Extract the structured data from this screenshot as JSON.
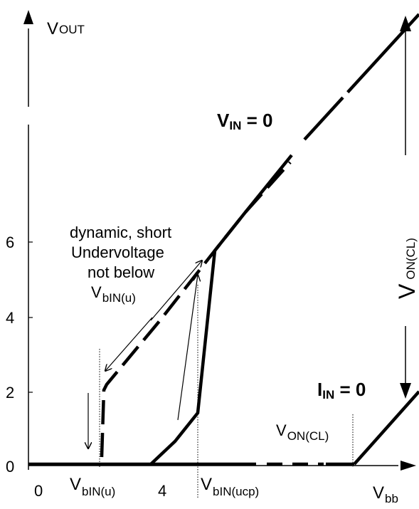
{
  "y_axis": {
    "label_main": "V",
    "label_sub": "OUT"
  },
  "x_axis": {
    "label_main": "V",
    "label_sub": "bb",
    "tick_0": "0",
    "tick_4": "4",
    "mark_bin_main": "V",
    "mark_bin_sub": "bIN(u)",
    "mark_ucp_main": "V",
    "mark_ucp_sub": "bIN(ucp)"
  },
  "y_ticks": [
    "0",
    "2",
    "4",
    "6"
  ],
  "labels": {
    "vin_main": "V",
    "vin_sub": "IN",
    "vin_eq": " = 0",
    "iin_main": "I",
    "iin_sub": "IN",
    "iin_eq": " = 0",
    "von_right_main": "V",
    "von_right_sub": "ON(CL)",
    "von_bottom_main": "V",
    "von_bottom_sub": "ON(CL)"
  },
  "annotation": {
    "line1": "dynamic, short",
    "line2": "Undervoltage",
    "line3": "not below",
    "line4_main": "V",
    "line4_sub": "bIN(u)"
  },
  "colors": {
    "ink": "#000000",
    "background": "#ffffff"
  }
}
